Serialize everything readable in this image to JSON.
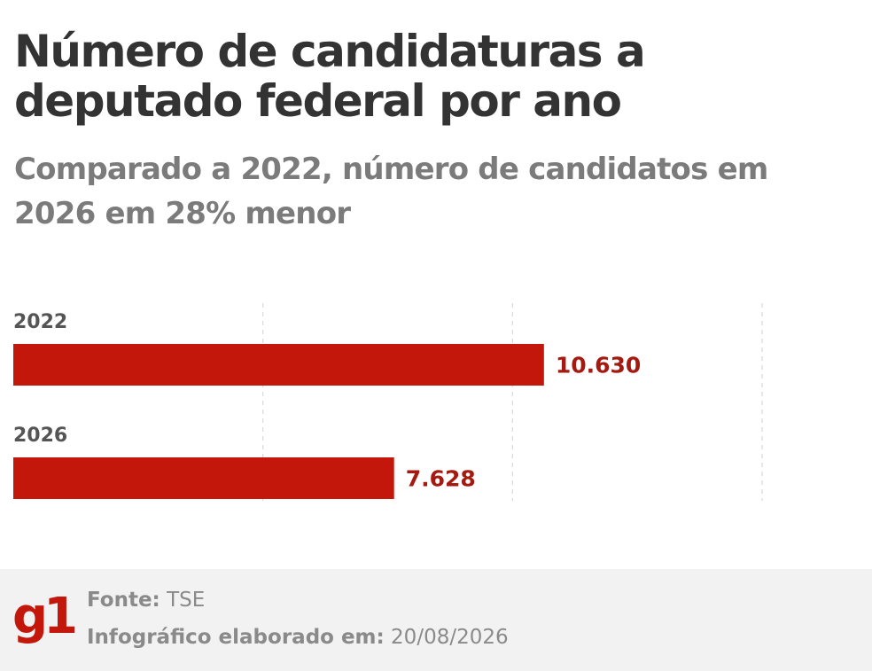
{
  "title": "Número de candidaturas a deputado federal por ano",
  "subtitle": "Comparado a 2022, número de candidatos em 2026 em 28% menor",
  "chart_data": {
    "type": "bar",
    "orientation": "horizontal",
    "categories": [
      "2022",
      "2026"
    ],
    "values": [
      10630,
      7628
    ],
    "value_labels": [
      "10.630",
      "7.628"
    ],
    "xlim": [
      0,
      15000
    ],
    "grid": true,
    "bar_color": "#c4170c",
    "label_color": "#a51a10"
  },
  "footer": {
    "logo_text": "g1",
    "source_label": "Fonte:",
    "source_value": "TSE",
    "date_label": "Infográfico elaborado em:",
    "date_value": "20/08/2026"
  },
  "colors": {
    "title": "#333333",
    "subtitle": "#7b7b7b",
    "footer_bg": "#f2f2f2",
    "brand": "#c4170c"
  }
}
